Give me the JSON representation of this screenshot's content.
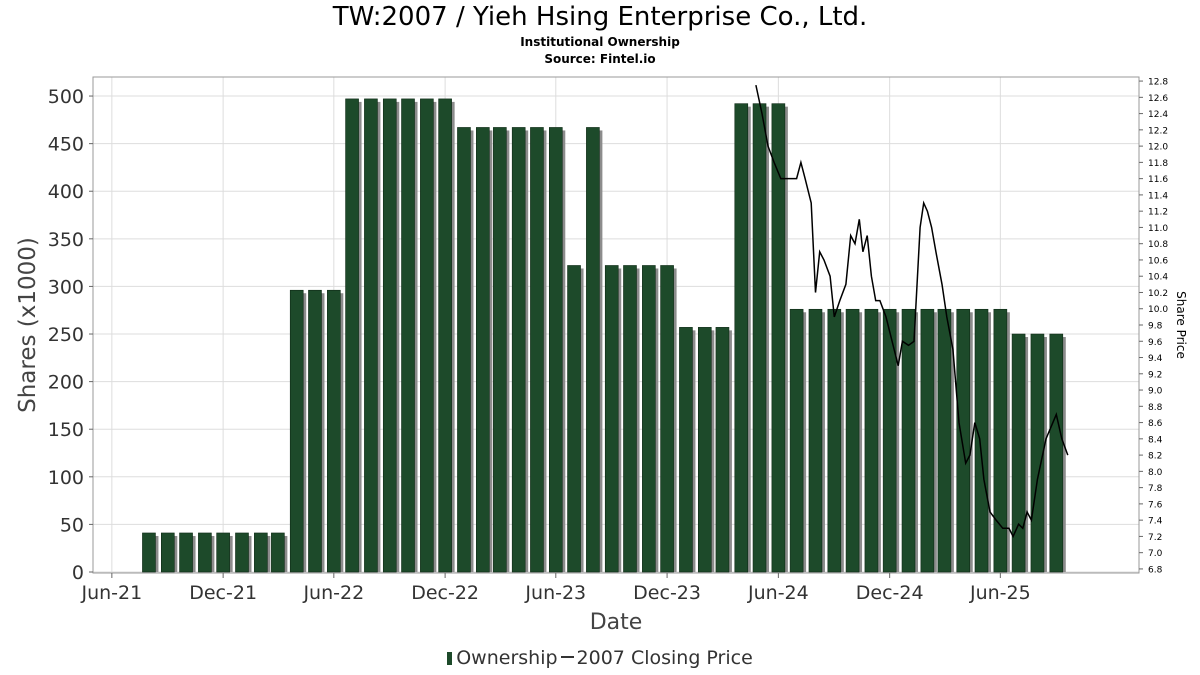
{
  "header": {
    "title": "TW:2007 / Yieh Hsing Enterprise Co., Ltd.",
    "subtitle": "Institutional Ownership",
    "source": "Source: Fintel.io"
  },
  "legend": {
    "ownership_label": "Ownership",
    "price_label": "2007 Closing Price"
  },
  "colors": {
    "bar": "#1d4a2a",
    "bar_shadow": "#8c8c8c",
    "line": "#000000",
    "grid": "#dddddd"
  },
  "chart_data": {
    "type": "bar",
    "title": "TW:2007 / Yieh Hsing Enterprise Co., Ltd.",
    "xlabel": "Date",
    "ylabel": "Shares (x1000)",
    "y2label": "Share Price",
    "ylim": [
      0,
      520
    ],
    "y2lim": [
      6.75,
      12.85
    ],
    "yticks": [
      0,
      50,
      100,
      150,
      200,
      250,
      300,
      350,
      400,
      450,
      500
    ],
    "y2ticks": [
      "6.8",
      "7.0",
      "7.2",
      "7.4",
      "7.6",
      "7.8",
      "8.0",
      "8.2",
      "8.4",
      "8.6",
      "8.8",
      "9.0",
      "9.2",
      "9.4",
      "9.6",
      "9.8",
      "10.0",
      "10.2",
      "10.4",
      "10.6",
      "10.8",
      "11.0",
      "11.2",
      "11.4",
      "11.6",
      "11.8",
      "12.0",
      "12.2",
      "12.4",
      "12.6",
      "12.8"
    ],
    "xticks": [
      {
        "label": "Jun-21",
        "date": "2021-06-01"
      },
      {
        "label": "Dec-21",
        "date": "2021-12-01"
      },
      {
        "label": "Jun-22",
        "date": "2022-06-01"
      },
      {
        "label": "Dec-22",
        "date": "2022-12-01"
      },
      {
        "label": "Jun-23",
        "date": "2023-06-01"
      },
      {
        "label": "Dec-23",
        "date": "2023-12-01"
      },
      {
        "label": "Jun-24",
        "date": "2024-06-01"
      },
      {
        "label": "Dec-24",
        "date": "2024-12-01"
      },
      {
        "label": "Jun-25",
        "date": "2025-06-01"
      }
    ],
    "xlim": [
      "2021-05-01",
      "2026-01-15"
    ],
    "grid": true,
    "legend_position": "bottom",
    "series": [
      {
        "name": "Ownership",
        "type": "bar",
        "points": [
          {
            "date": "2021-08-01",
            "value": 41
          },
          {
            "date": "2021-09-01",
            "value": 41
          },
          {
            "date": "2021-10-01",
            "value": 41
          },
          {
            "date": "2021-11-01",
            "value": 41
          },
          {
            "date": "2021-12-01",
            "value": 41
          },
          {
            "date": "2022-01-01",
            "value": 41
          },
          {
            "date": "2022-02-01",
            "value": 41
          },
          {
            "date": "2022-03-01",
            "value": 41
          },
          {
            "date": "2022-04-01",
            "value": 296
          },
          {
            "date": "2022-05-01",
            "value": 296
          },
          {
            "date": "2022-06-01",
            "value": 296
          },
          {
            "date": "2022-07-01",
            "value": 497
          },
          {
            "date": "2022-08-01",
            "value": 497
          },
          {
            "date": "2022-09-01",
            "value": 497
          },
          {
            "date": "2022-10-01",
            "value": 497
          },
          {
            "date": "2022-11-01",
            "value": 497
          },
          {
            "date": "2022-12-01",
            "value": 497
          },
          {
            "date": "2023-01-01",
            "value": 467
          },
          {
            "date": "2023-02-01",
            "value": 467
          },
          {
            "date": "2023-03-01",
            "value": 467
          },
          {
            "date": "2023-04-01",
            "value": 467
          },
          {
            "date": "2023-05-01",
            "value": 467
          },
          {
            "date": "2023-06-01",
            "value": 467
          },
          {
            "date": "2023-07-01",
            "value": 322
          },
          {
            "date": "2023-08-01",
            "value": 467
          },
          {
            "date": "2023-09-01",
            "value": 322
          },
          {
            "date": "2023-10-01",
            "value": 322
          },
          {
            "date": "2023-11-01",
            "value": 322
          },
          {
            "date": "2023-12-01",
            "value": 322
          },
          {
            "date": "2024-01-01",
            "value": 257
          },
          {
            "date": "2024-02-01",
            "value": 257
          },
          {
            "date": "2024-03-01",
            "value": 257
          },
          {
            "date": "2024-04-01",
            "value": 492
          },
          {
            "date": "2024-05-01",
            "value": 492
          },
          {
            "date": "2024-06-01",
            "value": 492
          },
          {
            "date": "2024-07-01",
            "value": 276
          },
          {
            "date": "2024-08-01",
            "value": 276
          },
          {
            "date": "2024-09-01",
            "value": 276
          },
          {
            "date": "2024-10-01",
            "value": 276
          },
          {
            "date": "2024-11-01",
            "value": 276
          },
          {
            "date": "2024-12-01",
            "value": 276
          },
          {
            "date": "2025-01-01",
            "value": 276
          },
          {
            "date": "2025-02-01",
            "value": 276
          },
          {
            "date": "2025-03-01",
            "value": 276
          },
          {
            "date": "2025-04-01",
            "value": 276
          },
          {
            "date": "2025-05-01",
            "value": 276
          },
          {
            "date": "2025-06-01",
            "value": 276
          },
          {
            "date": "2025-07-01",
            "value": 250
          },
          {
            "date": "2025-08-01",
            "value": 250
          },
          {
            "date": "2025-09-01",
            "value": 250
          }
        ]
      },
      {
        "name": "2007 Closing Price",
        "type": "line",
        "axis": "right",
        "points": [
          {
            "date": "2024-04-25",
            "value": 12.75
          },
          {
            "date": "2024-05-05",
            "value": 12.4
          },
          {
            "date": "2024-05-15",
            "value": 12.0
          },
          {
            "date": "2024-05-25",
            "value": 11.8
          },
          {
            "date": "2024-06-05",
            "value": 11.6
          },
          {
            "date": "2024-06-20",
            "value": 11.6
          },
          {
            "date": "2024-07-01",
            "value": 11.6
          },
          {
            "date": "2024-07-08",
            "value": 11.8
          },
          {
            "date": "2024-07-15",
            "value": 11.6
          },
          {
            "date": "2024-07-25",
            "value": 11.3
          },
          {
            "date": "2024-08-01",
            "value": 10.2
          },
          {
            "date": "2024-08-08",
            "value": 10.7
          },
          {
            "date": "2024-08-15",
            "value": 10.6
          },
          {
            "date": "2024-08-25",
            "value": 10.4
          },
          {
            "date": "2024-09-01",
            "value": 9.9
          },
          {
            "date": "2024-09-10",
            "value": 10.1
          },
          {
            "date": "2024-09-20",
            "value": 10.3
          },
          {
            "date": "2024-09-28",
            "value": 10.9
          },
          {
            "date": "2024-10-05",
            "value": 10.8
          },
          {
            "date": "2024-10-12",
            "value": 11.1
          },
          {
            "date": "2024-10-18",
            "value": 10.7
          },
          {
            "date": "2024-10-25",
            "value": 10.9
          },
          {
            "date": "2024-11-01",
            "value": 10.4
          },
          {
            "date": "2024-11-08",
            "value": 10.1
          },
          {
            "date": "2024-11-15",
            "value": 10.1
          },
          {
            "date": "2024-11-25",
            "value": 9.9
          },
          {
            "date": "2024-12-05",
            "value": 9.6
          },
          {
            "date": "2024-12-15",
            "value": 9.3
          },
          {
            "date": "2024-12-22",
            "value": 9.6
          },
          {
            "date": "2025-01-01",
            "value": 9.55
          },
          {
            "date": "2025-01-10",
            "value": 9.6
          },
          {
            "date": "2025-01-20",
            "value": 11.0
          },
          {
            "date": "2025-01-26",
            "value": 11.3
          },
          {
            "date": "2025-02-01",
            "value": 11.2
          },
          {
            "date": "2025-02-08",
            "value": 11.0
          },
          {
            "date": "2025-02-15",
            "value": 10.7
          },
          {
            "date": "2025-02-25",
            "value": 10.3
          },
          {
            "date": "2025-03-05",
            "value": 9.9
          },
          {
            "date": "2025-03-15",
            "value": 9.5
          },
          {
            "date": "2025-03-25",
            "value": 8.6
          },
          {
            "date": "2025-04-05",
            "value": 8.1
          },
          {
            "date": "2025-04-12",
            "value": 8.2
          },
          {
            "date": "2025-04-20",
            "value": 8.6
          },
          {
            "date": "2025-04-28",
            "value": 8.4
          },
          {
            "date": "2025-05-05",
            "value": 7.9
          },
          {
            "date": "2025-05-15",
            "value": 7.5
          },
          {
            "date": "2025-05-25",
            "value": 7.4
          },
          {
            "date": "2025-06-05",
            "value": 7.3
          },
          {
            "date": "2025-06-15",
            "value": 7.3
          },
          {
            "date": "2025-06-22",
            "value": 7.2
          },
          {
            "date": "2025-07-01",
            "value": 7.35
          },
          {
            "date": "2025-07-08",
            "value": 7.3
          },
          {
            "date": "2025-07-15",
            "value": 7.5
          },
          {
            "date": "2025-07-22",
            "value": 7.4
          },
          {
            "date": "2025-08-01",
            "value": 7.9
          },
          {
            "date": "2025-08-15",
            "value": 8.4
          },
          {
            "date": "2025-09-01",
            "value": 8.7
          },
          {
            "date": "2025-09-10",
            "value": 8.4
          },
          {
            "date": "2025-09-20",
            "value": 8.2
          }
        ]
      }
    ]
  }
}
